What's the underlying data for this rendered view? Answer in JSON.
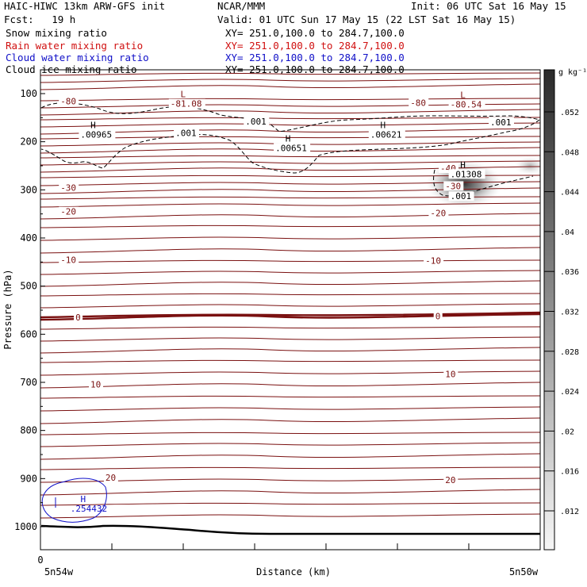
{
  "header": {
    "title_left": "HAIC-HIWC 13km ARW-GFS init",
    "org": "NCAR/MMM",
    "init": "Init: 06 UTC Sat 16 May 15",
    "fcst": "Fcst:   19 h",
    "valid": "Valid: 01 UTC Sun 17 May 15 (22 LST Sat 16 May 15)"
  },
  "fields": [
    {
      "label": "Snow mixing ratio",
      "xy": "XY= 251.0,100.0 to 284.7,100.0",
      "color": "#000000"
    },
    {
      "label": "Rain water mixing ratio",
      "xy": "XY= 251.0,100.0 to 284.7,100.0",
      "color": "#d01010"
    },
    {
      "label": "Cloud water mixing ratio",
      "xy": "XY= 251.0,100.0 to 284.7,100.0",
      "color": "#1010c8"
    },
    {
      "label": "Cloud ice mixing ratio",
      "xy": "XY= 251.0,100.0 to 284.7,100.0",
      "color": "#000000"
    }
  ],
  "chart_data": {
    "type": "heatmap",
    "ylabel": "Pressure (hPa)",
    "xlabel": "Distance (km)",
    "x_tick_labels": [
      "0"
    ],
    "x_end_labels": [
      "5n54w",
      "5n50w"
    ],
    "y_ticks": [
      100,
      200,
      300,
      400,
      500,
      600,
      700,
      800,
      900,
      1000
    ],
    "ylim": [
      1050,
      70
    ],
    "colorbar": {
      "unit": "g kg⁻¹",
      "ticks": [
        ".012",
        ".016",
        ".02",
        ".024",
        ".028",
        ".032",
        ".036",
        ".04",
        ".044",
        ".048",
        ".052"
      ]
    },
    "temperature_contour_labels": [
      {
        "value": "-80",
        "p": 116,
        "xf": 0.04
      },
      {
        "value": "-80",
        "p": 119,
        "xf": 0.74
      },
      {
        "value": "-40",
        "p": 255,
        "xf": 0.8
      },
      {
        "value": "-30",
        "p": 295,
        "xf": 0.04
      },
      {
        "value": "-30",
        "p": 292,
        "xf": 0.81
      },
      {
        "value": "-20",
        "p": 345,
        "xf": 0.04
      },
      {
        "value": "-20",
        "p": 348,
        "xf": 0.78
      },
      {
        "value": "-10",
        "p": 445,
        "xf": 0.04
      },
      {
        "value": "-10",
        "p": 447,
        "xf": 0.77
      },
      {
        "value": "0",
        "p": 565,
        "xf": 0.07
      },
      {
        "value": "0",
        "p": 562,
        "xf": 0.79
      },
      {
        "value": "10",
        "p": 704,
        "xf": 0.1
      },
      {
        "value": "10",
        "p": 683,
        "xf": 0.81
      },
      {
        "value": "20",
        "p": 898,
        "xf": 0.13
      },
      {
        "value": "20",
        "p": 903,
        "xf": 0.81
      }
    ],
    "extrema": [
      {
        "kind": "L",
        "value": "-81.08",
        "p": 121,
        "xf": 0.26
      },
      {
        "kind": "L",
        "value": "-80.54",
        "p": 122,
        "xf": 0.82
      },
      {
        "kind": "H",
        "value": ".00965",
        "p": 185,
        "xf": 0.08
      },
      {
        "kind": "H",
        "value": ".00651",
        "p": 213,
        "xf": 0.47
      },
      {
        "kind": "H",
        "value": ".00621",
        "p": 185,
        "xf": 0.66
      },
      {
        "kind": "H",
        "value": ".01308",
        "p": 267,
        "xf": 0.82
      },
      {
        "kind": "H",
        "value": ".254432",
        "p": 962,
        "xf": 0.06
      }
    ],
    "ice_contour_labels": [
      {
        "value": ".001",
        "p": 158,
        "xf": 0.41
      },
      {
        "value": ".001",
        "p": 182,
        "xf": 0.27
      },
      {
        "value": ".001",
        "p": 159,
        "xf": 0.9
      },
      {
        "value": ".001",
        "p": 313,
        "xf": 0.82
      }
    ]
  }
}
